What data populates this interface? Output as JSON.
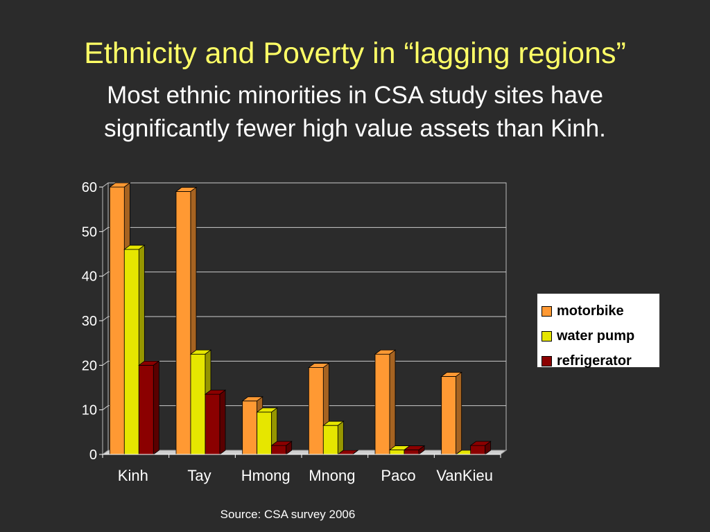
{
  "header": {
    "title": "Ethnicity and Poverty in “lagging regions”",
    "subtitle": "Most ethnic minorities in CSA study sites have significantly fewer high value assets than Kinh."
  },
  "source": "Source: CSA survey 2006",
  "chart_data": {
    "type": "bar",
    "style": "3d-clustered",
    "categories": [
      "Kinh",
      "Tay",
      "Hmong",
      "Mnong",
      "Paco",
      "VanKieu"
    ],
    "series": [
      {
        "name": "motorbike",
        "color": "#ff9933",
        "values": [
          60,
          59,
          12,
          19.5,
          22.5,
          17.5
        ]
      },
      {
        "name": "water pump",
        "color": "#e6e600",
        "values": [
          46,
          22.5,
          9.5,
          6.5,
          1,
          0
        ]
      },
      {
        "name": "refrigerator",
        "color": "#8b0000",
        "values": [
          20,
          13.5,
          2,
          0,
          1,
          2
        ]
      }
    ],
    "ylim": [
      0,
      60
    ],
    "yticks": [
      0,
      10,
      20,
      30,
      40,
      50,
      60
    ],
    "grid": true,
    "legend_position": "right"
  }
}
